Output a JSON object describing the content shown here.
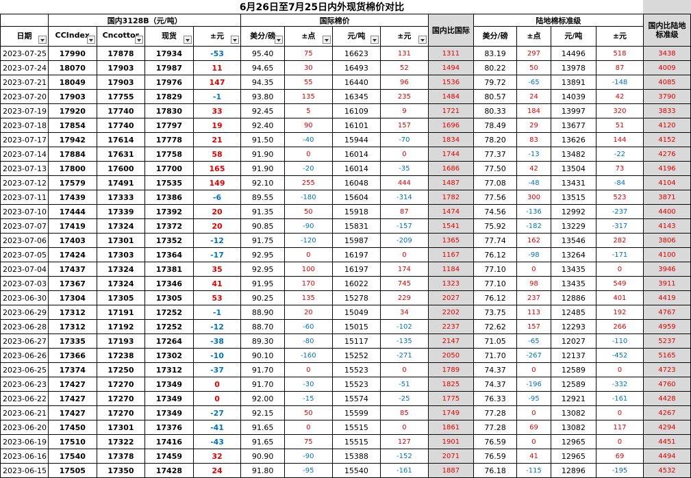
{
  "title": "6月26日至7月25日内外现货棉价对比",
  "groups": {
    "domestic": "国内3128B（元/吨）",
    "intl": "国际棉价",
    "port": "陆地棉标准级"
  },
  "headers": [
    "日期",
    "CCIndex",
    "Cncotton",
    "现货",
    "±元",
    "美分/磅",
    "±点",
    "元/吨",
    "±元",
    "国内比国际",
    "美分/磅",
    "±点",
    "元/吨",
    "±元",
    "国内比陆地标准级"
  ],
  "rows": [
    [
      "2023-07-25",
      "17990",
      "17878",
      "17934",
      "-53",
      "95.40",
      "75",
      "16623",
      "131",
      "1311",
      "83.19",
      "297",
      "14496",
      "518",
      "3438"
    ],
    [
      "2023-07-24",
      "18070",
      "17903",
      "17987",
      "11",
      "94.65",
      "30",
      "16493",
      "52",
      "1494",
      "80.22",
      "50",
      "13978",
      "87",
      "4009"
    ],
    [
      "2023-07-21",
      "18049",
      "17903",
      "17976",
      "147",
      "94.35",
      "55",
      "16440",
      "96",
      "1536",
      "79.72",
      "-65",
      "13891",
      "-148",
      "4085"
    ],
    [
      "2023-07-20",
      "17903",
      "17755",
      "17829",
      "-1",
      "93.80",
      "135",
      "16345",
      "235",
      "1484",
      "80.57",
      "24",
      "14039",
      "42",
      "3790"
    ],
    [
      "2023-07-19",
      "17920",
      "17740",
      "17830",
      "33",
      "92.45",
      "5",
      "16109",
      "9",
      "1721",
      "80.33",
      "184",
      "13997",
      "320",
      "3833"
    ],
    [
      "2023-07-18",
      "17854",
      "17740",
      "17797",
      "19",
      "92.40",
      "90",
      "16101",
      "157",
      "1696",
      "78.49",
      "29",
      "13677",
      "51",
      "4120"
    ],
    [
      "2023-07-17",
      "17942",
      "17614",
      "17778",
      "21",
      "91.50",
      "-40",
      "15944",
      "-70",
      "1834",
      "78.20",
      "83",
      "13626",
      "144",
      "4152"
    ],
    [
      "2023-07-14",
      "17884",
      "17631",
      "17758",
      "58",
      "91.90",
      "0",
      "16014",
      "0",
      "1744",
      "77.37",
      "-13",
      "13482",
      "-22",
      "4276"
    ],
    [
      "2023-07-13",
      "17800",
      "17600",
      "17700",
      "165",
      "91.90",
      "-20",
      "16014",
      "-35",
      "1686",
      "77.50",
      "42",
      "13504",
      "73",
      "4196"
    ],
    [
      "2023-07-12",
      "17579",
      "17491",
      "17535",
      "149",
      "92.10",
      "255",
      "16048",
      "444",
      "1487",
      "77.08",
      "-48",
      "13431",
      "-84",
      "4104"
    ],
    [
      "2023-07-11",
      "17439",
      "17333",
      "17386",
      "-6",
      "89.55",
      "-180",
      "15604",
      "-314",
      "1782",
      "77.56",
      "300",
      "13515",
      "523",
      "3871"
    ],
    [
      "2023-07-10",
      "17444",
      "17339",
      "17392",
      "20",
      "91.35",
      "50",
      "15918",
      "87",
      "1474",
      "74.56",
      "-136",
      "12992",
      "-237",
      "4400"
    ],
    [
      "2023-07-07",
      "17419",
      "17324",
      "17372",
      "20",
      "90.85",
      "-90",
      "15831",
      "-157",
      "1541",
      "75.92",
      "-182",
      "13229",
      "-317",
      "4143"
    ],
    [
      "2023-07-06",
      "17403",
      "17301",
      "17352",
      "-12",
      "91.75",
      "-120",
      "15987",
      "-209",
      "1365",
      "77.74",
      "162",
      "13546",
      "282",
      "3806"
    ],
    [
      "2023-07-05",
      "17424",
      "17303",
      "17364",
      "-17",
      "92.95",
      "0",
      "16197",
      "0",
      "1167",
      "76.12",
      "-98",
      "13264",
      "-171",
      "4100"
    ],
    [
      "2023-07-04",
      "17437",
      "17324",
      "17381",
      "35",
      "92.95",
      "100",
      "16197",
      "174",
      "1184",
      "77.10",
      "0",
      "13435",
      "0",
      "3946"
    ],
    [
      "2023-07-03",
      "17367",
      "17324",
      "17346",
      "41",
      "91.95",
      "170",
      "16022",
      "745",
      "1323",
      "77.10",
      "98",
      "13435",
      "549",
      "3911"
    ],
    [
      "2023-06-30",
      "17304",
      "17305",
      "17305",
      "53",
      "90.25",
      "135",
      "15278",
      "229",
      "2027",
      "76.12",
      "237",
      "12886",
      "401",
      "4419"
    ],
    [
      "2023-06-29",
      "17312",
      "17191",
      "17252",
      "-1",
      "88.90",
      "20",
      "15049",
      "34",
      "2202",
      "73.75",
      "113",
      "12485",
      "192",
      "4767"
    ],
    [
      "2023-06-28",
      "17312",
      "17192",
      "17252",
      "-12",
      "88.70",
      "-60",
      "15015",
      "-102",
      "2237",
      "72.62",
      "157",
      "12293",
      "266",
      "4959"
    ],
    [
      "2023-06-27",
      "17335",
      "17193",
      "17264",
      "-38",
      "89.30",
      "-80",
      "15117",
      "-135",
      "2147",
      "71.05",
      "-65",
      "12027",
      "-110",
      "5237"
    ],
    [
      "2023-06-26",
      "17366",
      "17238",
      "17302",
      "-10",
      "90.10",
      "-160",
      "15252",
      "-271",
      "2050",
      "71.70",
      "-267",
      "12137",
      "-452",
      "5165"
    ],
    [
      "2023-06-25",
      "17374",
      "17250",
      "17312",
      "-37",
      "91.70",
      "0",
      "15523",
      "0",
      "1789",
      "74.37",
      "0",
      "12589",
      "0",
      "4723"
    ],
    [
      "2023-06-23",
      "17427",
      "17270",
      "17349",
      "0",
      "91.70",
      "-30",
      "15523",
      "-51",
      "1825",
      "74.37",
      "-196",
      "12589",
      "-332",
      "4760"
    ],
    [
      "2023-06-22",
      "17427",
      "17270",
      "17349",
      "0",
      "92.00",
      "-15",
      "15574",
      "-25",
      "1775",
      "76.33",
      "-95",
      "12921",
      "-161",
      "4428"
    ],
    [
      "2023-06-21",
      "17427",
      "17270",
      "17349",
      "-27",
      "92.15",
      "50",
      "15599",
      "85",
      "1749",
      "77.28",
      "0",
      "13082",
      "0",
      "4267"
    ],
    [
      "2023-06-20",
      "17450",
      "17301",
      "17376",
      "-41",
      "91.65",
      "0",
      "15515",
      "0",
      "1861",
      "77.28",
      "69",
      "13082",
      "117",
      "4294"
    ],
    [
      "2023-06-19",
      "17510",
      "17322",
      "17416",
      "-43",
      "91.65",
      "75",
      "15515",
      "127",
      "1901",
      "76.59",
      "0",
      "12965",
      "0",
      "4451"
    ],
    [
      "2023-06-16",
      "17540",
      "17378",
      "17459",
      "32",
      "90.90",
      "-90",
      "15388",
      "-152",
      "2071",
      "76.59",
      "41",
      "12965",
      "69",
      "4494"
    ],
    [
      "2023-06-15",
      "17505",
      "17350",
      "17428",
      "24",
      "91.80",
      "-95",
      "15540",
      "-161",
      "1887",
      "76.18",
      "-115",
      "12896",
      "-195",
      "4532"
    ]
  ]
}
